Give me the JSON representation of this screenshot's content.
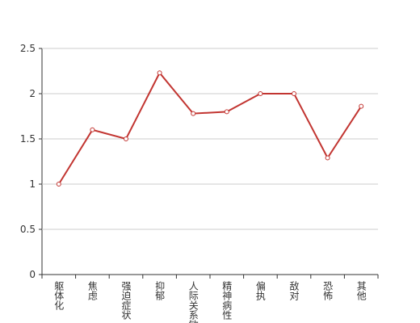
{
  "chart_data": {
    "type": "line",
    "categories": [
      "躯体化",
      "焦虑",
      "强迫症状",
      "抑郁",
      "人际关系敏感",
      "精神病性",
      "偏执",
      "敌对",
      "恐怖",
      "其他"
    ],
    "values": [
      1,
      1.6,
      1.5,
      2.23,
      1.78,
      1.8,
      2,
      2,
      1.29,
      1.86
    ],
    "color": "#c23531",
    "ylim": [
      0,
      2.5
    ],
    "yticks": [
      0,
      0.5,
      1,
      1.5,
      2,
      2.5
    ],
    "grid": true
  }
}
